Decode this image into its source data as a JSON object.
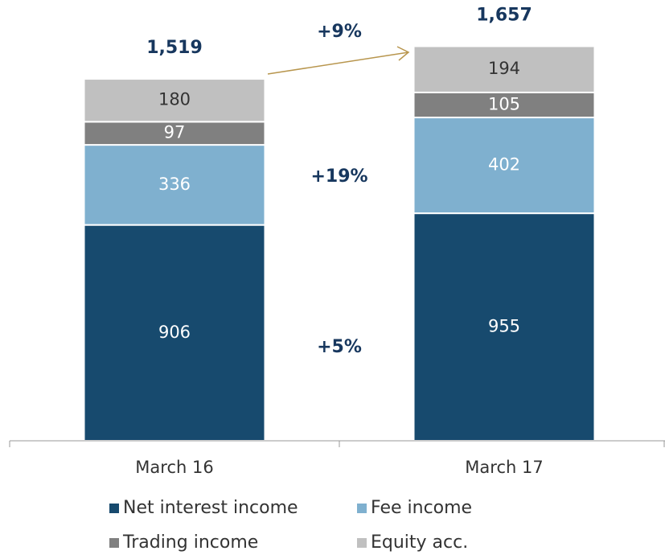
{
  "chart_data": {
    "type": "stacked_bar",
    "categories": [
      "March 16",
      "March 17"
    ],
    "series": [
      {
        "name": "Net interest income",
        "color": "#174a6e",
        "label_color": "#ffffff",
        "values": [
          906,
          955
        ]
      },
      {
        "name": "Fee income",
        "color": "#7fb0cf",
        "label_color": "#ffffff",
        "values": [
          336,
          402
        ]
      },
      {
        "name": "Trading income",
        "color": "#808080",
        "label_color": "#ffffff",
        "values": [
          97,
          105
        ]
      },
      {
        "name": "Equity acc.",
        "color": "#c0c0c0",
        "label_color": "#333333",
        "values": [
          180,
          194
        ]
      }
    ],
    "totals": [
      "1,519",
      "1,657"
    ],
    "annotations": [
      "+9%",
      "+19%",
      "+5%"
    ],
    "ylim": [
      0,
      1850
    ]
  }
}
